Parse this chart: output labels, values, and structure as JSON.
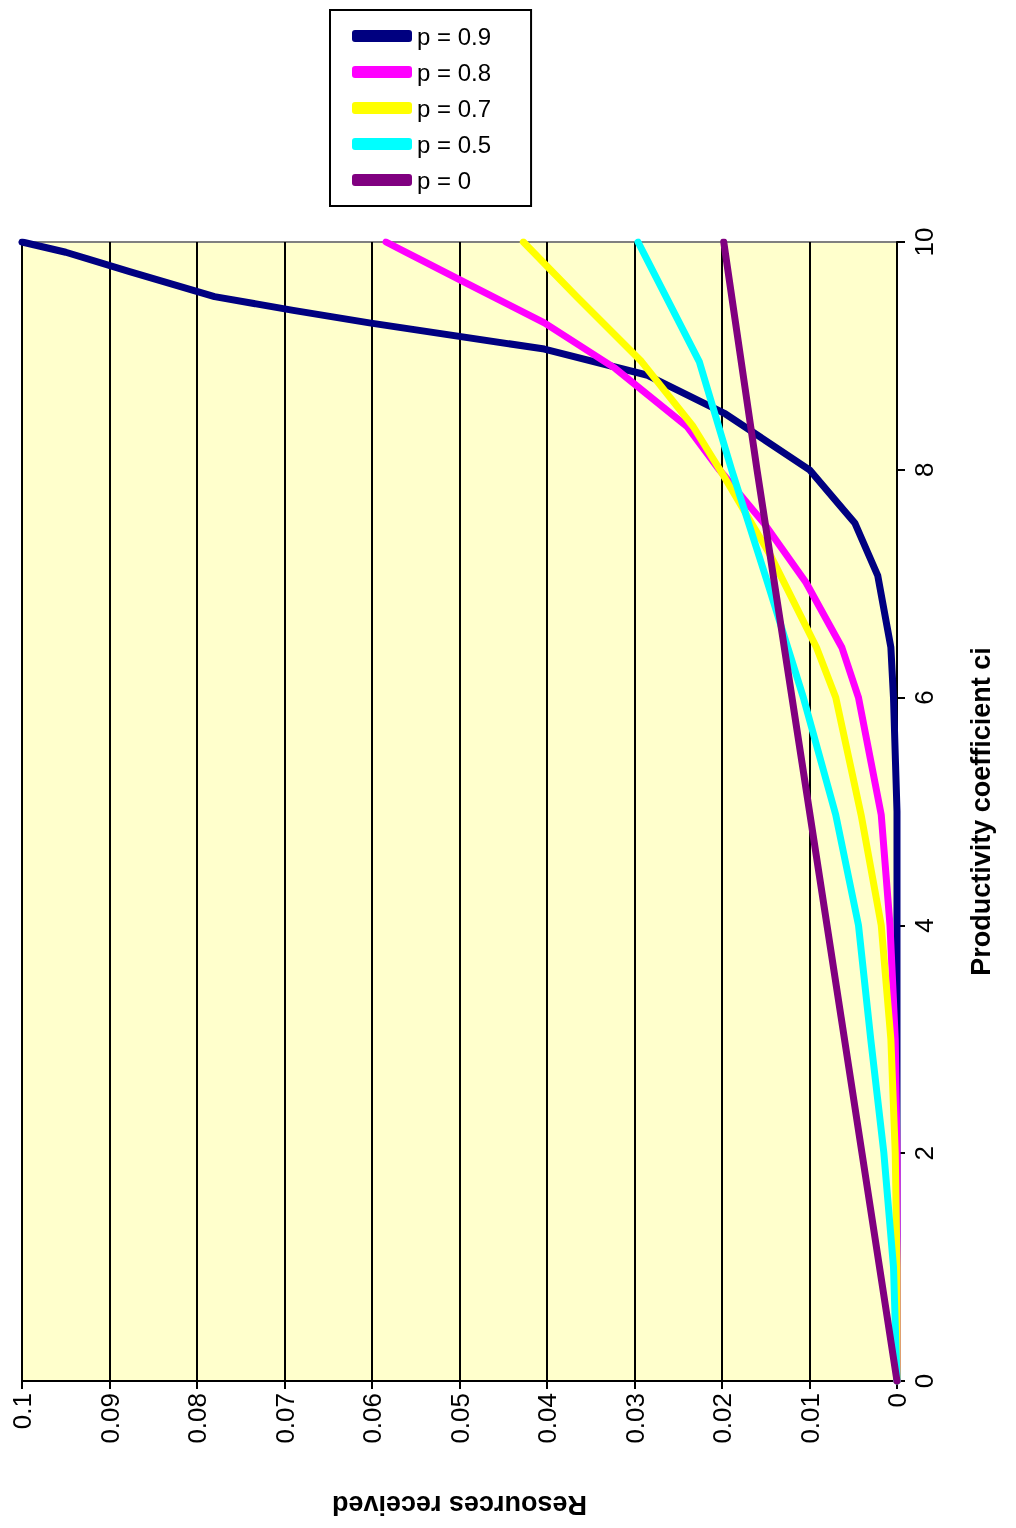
{
  "chart_data": {
    "type": "line",
    "xlabel": "Resources received",
    "ylabel": "Productivity coefficient ci",
    "xlim": [
      0.1,
      0
    ],
    "xticks": [
      0.1,
      0.09,
      0.08,
      0.07,
      0.06,
      0.05,
      0.04,
      0.03,
      0.02,
      0.01,
      0
    ],
    "ylim": [
      0,
      10
    ],
    "yticks": [
      0,
      2,
      4,
      6,
      8,
      10
    ],
    "grid": "x",
    "legend": "top right",
    "marker": "none",
    "line_style": "solid",
    "series": [
      {
        "name": "p = 0.9",
        "color": "#000080",
        "x": [
          0,
          0,
          0.0004,
          0.0007,
          0.0022,
          0.0048,
          0.01,
          0.0196,
          0.0285,
          0.0403,
          0.0603,
          0.069,
          0.078,
          0.0877,
          0.095,
          0.1
        ],
        "values": [
          0,
          5,
          6,
          6.44,
          7.07,
          7.53,
          8,
          8.49,
          8.83,
          9.06,
          9.29,
          9.4,
          9.52,
          9.74,
          9.91,
          10
        ]
      },
      {
        "name": "p = 0.8",
        "color": "#ff00ff",
        "x": [
          0,
          0,
          0.0002,
          0.0008,
          0.0018,
          0.0044,
          0.0063,
          0.0104,
          0.0152,
          0.0203,
          0.024,
          0.0322,
          0.0403,
          0.049,
          0.0584
        ],
        "values": [
          0,
          2,
          3,
          4,
          4.97,
          6,
          6.44,
          7.01,
          7.53,
          8,
          8.38,
          8.89,
          9.29,
          9.63,
          10
        ]
      },
      {
        "name": "p = 0.7",
        "color": "#ffff00",
        "x": [
          0,
          0,
          0.0002,
          0.0007,
          0.0018,
          0.0041,
          0.007,
          0.0092,
          0.0144,
          0.0196,
          0.0233,
          0.0292,
          0.0366,
          0.0427
        ],
        "values": [
          0,
          1,
          2,
          3,
          4,
          4.97,
          6,
          6.44,
          7.24,
          7.92,
          8.38,
          8.95,
          9.52,
          10
        ]
      },
      {
        "name": "p = 0.5",
        "color": "#00ffff",
        "x": [
          0,
          0.0004,
          0.0015,
          0.003,
          0.0044,
          0.007,
          0.0107,
          0.0148,
          0.0189,
          0.0226,
          0.0296
        ],
        "values": [
          0,
          1,
          2,
          3,
          4,
          4.97,
          6,
          7.01,
          8,
          8.95,
          10
        ]
      },
      {
        "name": "p = 0",
        "color": "#800080",
        "x": [
          0,
          0.004,
          0.008,
          0.012,
          0.016,
          0.0198
        ],
        "values": [
          0,
          2,
          4,
          6,
          8,
          10
        ]
      }
    ]
  }
}
